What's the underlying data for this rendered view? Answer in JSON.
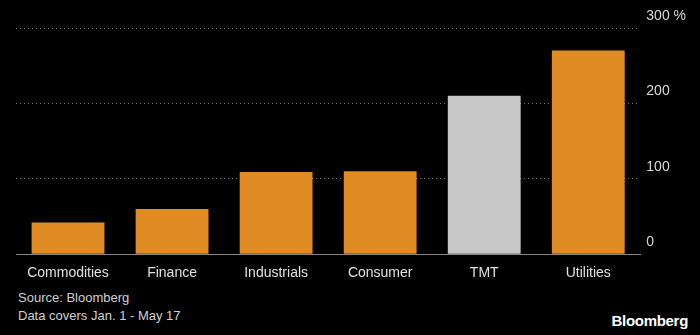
{
  "chart_data": {
    "type": "bar",
    "categories": [
      "Commodities",
      "Finance",
      "Industrials",
      "Consumer",
      "TMT",
      "Utilities"
    ],
    "values": [
      42,
      60,
      109,
      110,
      210,
      270
    ],
    "colors": [
      "#e08b24",
      "#e08b24",
      "#e08b24",
      "#e08b24",
      "#c8c8c8",
      "#e08b24"
    ],
    "ylim": [
      0,
      300
    ],
    "yticks": [
      0,
      100,
      200,
      {
        "value": 300,
        "label": "300 %"
      }
    ],
    "grid": true,
    "source": "Source: Bloomberg",
    "note": "Data covers Jan. 1 - May 17",
    "brand": "Bloomberg"
  }
}
